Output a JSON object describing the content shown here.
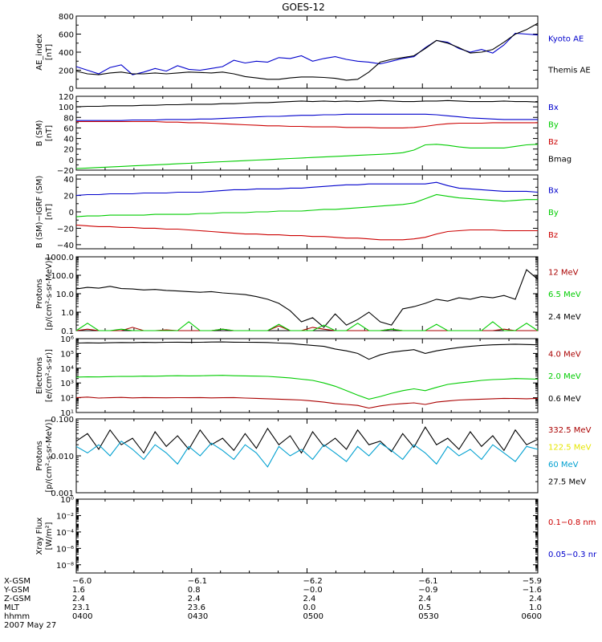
{
  "title": "GOES-12",
  "colors": {
    "black": "#000000",
    "blue": "#0000cc",
    "green": "#00cc00",
    "red": "#cc0000",
    "darkred": "#aa0000",
    "yellow": "#e6e600",
    "cyan": "#00a0d0"
  },
  "chart_data": [
    {
      "id": "ae",
      "type": "line",
      "ylabel": [
        "AE_index",
        "[nT]"
      ],
      "ylim": [
        0,
        800
      ],
      "yscale": "linear",
      "yticks": [
        0,
        200,
        400,
        600,
        800
      ],
      "tick_labels": [
        "0",
        "200",
        "400",
        "600",
        "800"
      ],
      "legend": [
        {
          "label": "Kyoto AE",
          "color": "#0000cc"
        },
        {
          "label": "Themis AE",
          "color": "#000000"
        }
      ],
      "series": [
        {
          "name": "Kyoto AE",
          "color": "#0000cc",
          "values": [
            240,
            200,
            160,
            230,
            260,
            150,
            180,
            220,
            190,
            250,
            210,
            200,
            220,
            240,
            310,
            280,
            300,
            290,
            340,
            330,
            360,
            300,
            330,
            350,
            320,
            300,
            290,
            270,
            300,
            330,
            350,
            450,
            530,
            510,
            440,
            400,
            430,
            390,
            480,
            610,
            600,
            590
          ]
        },
        {
          "name": "Themis AE",
          "color": "#000000",
          "values": [
            190,
            160,
            150,
            170,
            180,
            160,
            160,
            170,
            160,
            170,
            180,
            175,
            170,
            180,
            160,
            130,
            115,
            100,
            100,
            115,
            125,
            125,
            120,
            110,
            90,
            100,
            180,
            290,
            320,
            340,
            360,
            440,
            530,
            500,
            450,
            390,
            400,
            430,
            510,
            600,
            650,
            720
          ]
        }
      ]
    },
    {
      "id": "bsm",
      "type": "line",
      "ylabel": [
        "B (SM)",
        "[nT]"
      ],
      "ylim": [
        -20,
        120
      ],
      "yscale": "linear",
      "yticks": [
        -20,
        0,
        20,
        40,
        60,
        80,
        100,
        120
      ],
      "tick_labels": [
        "−20",
        "0",
        "20",
        "40",
        "60",
        "80",
        "100",
        "120"
      ],
      "legend": [
        {
          "label": "Bx",
          "color": "#0000cc"
        },
        {
          "label": "By",
          "color": "#00cc00"
        },
        {
          "label": "Bz",
          "color": "#cc0000"
        },
        {
          "label": "Bmag",
          "color": "#000000"
        }
      ],
      "series": [
        {
          "name": "Bmag",
          "color": "#000000",
          "values": [
            100,
            101,
            101,
            102,
            102,
            102,
            103,
            103,
            104,
            104,
            105,
            105,
            105,
            106,
            106,
            107,
            108,
            108,
            109,
            110,
            111,
            110,
            111,
            110,
            111,
            110,
            111,
            112,
            111,
            110,
            110,
            111,
            111,
            112,
            111,
            110,
            110,
            110,
            111,
            110,
            110,
            109
          ]
        },
        {
          "name": "Bx",
          "color": "#0000cc",
          "values": [
            74,
            74,
            74,
            74,
            74,
            75,
            75,
            75,
            76,
            76,
            76,
            77,
            77,
            78,
            79,
            80,
            81,
            82,
            82,
            83,
            84,
            84,
            85,
            85,
            86,
            86,
            86,
            86,
            86,
            86,
            86,
            86,
            85,
            83,
            81,
            79,
            78,
            77,
            76,
            76,
            76,
            76
          ]
        },
        {
          "name": "Bz",
          "color": "#cc0000",
          "values": [
            72,
            72,
            72,
            72,
            72,
            72,
            72,
            72,
            71,
            71,
            70,
            70,
            69,
            68,
            67,
            66,
            65,
            64,
            64,
            63,
            63,
            62,
            62,
            62,
            61,
            61,
            61,
            60,
            60,
            60,
            61,
            63,
            66,
            68,
            69,
            69,
            69,
            70,
            70,
            70,
            70,
            70
          ]
        },
        {
          "name": "By",
          "color": "#00cc00",
          "values": [
            -17,
            -16,
            -15,
            -14,
            -13,
            -12,
            -11,
            -10,
            -9,
            -8,
            -7,
            -6,
            -5,
            -4,
            -3,
            -2,
            -1,
            0,
            1,
            2,
            3,
            4,
            5,
            6,
            7,
            8,
            9,
            10,
            11,
            13,
            18,
            28,
            29,
            27,
            24,
            22,
            22,
            22,
            22,
            25,
            28,
            29
          ]
        }
      ]
    },
    {
      "id": "bsm_igrf",
      "type": "line",
      "ylabel": [
        "B (SM)−IGRF (SM)",
        "[nT]"
      ],
      "ylim": [
        -45,
        45
      ],
      "yscale": "linear",
      "yticks": [
        -40,
        -20,
        0,
        20,
        40
      ],
      "tick_labels": [
        "−40",
        "−20",
        "0",
        "20",
        "40"
      ],
      "legend": [
        {
          "label": "Bx",
          "color": "#0000cc"
        },
        {
          "label": "By",
          "color": "#00cc00"
        },
        {
          "label": "Bz",
          "color": "#cc0000"
        }
      ],
      "series": [
        {
          "name": "Bx",
          "color": "#0000cc",
          "values": [
            20,
            21,
            21,
            22,
            22,
            22,
            23,
            23,
            23,
            24,
            24,
            24,
            25,
            26,
            27,
            27,
            28,
            28,
            28,
            29,
            29,
            30,
            31,
            32,
            33,
            33,
            34,
            34,
            34,
            34,
            34,
            34,
            36,
            32,
            29,
            28,
            27,
            26,
            25,
            25,
            25,
            24
          ]
        },
        {
          "name": "By",
          "color": "#00cc00",
          "values": [
            -6,
            -5,
            -5,
            -4,
            -4,
            -4,
            -4,
            -3,
            -3,
            -3,
            -3,
            -2,
            -2,
            -1,
            -1,
            -1,
            0,
            0,
            1,
            1,
            1,
            2,
            3,
            3,
            4,
            5,
            6,
            7,
            8,
            9,
            11,
            16,
            21,
            19,
            17,
            16,
            15,
            14,
            13,
            14,
            15,
            15
          ]
        },
        {
          "name": "Bz",
          "color": "#cc0000",
          "values": [
            -16,
            -17,
            -18,
            -18,
            -19,
            -19,
            -20,
            -20,
            -21,
            -21,
            -22,
            -23,
            -24,
            -25,
            -26,
            -27,
            -27,
            -28,
            -28,
            -29,
            -29,
            -30,
            -30,
            -31,
            -32,
            -32,
            -33,
            -34,
            -34,
            -34,
            -33,
            -31,
            -27,
            -24,
            -23,
            -22,
            -22,
            -22,
            -23,
            -23,
            -23,
            -23
          ]
        }
      ]
    },
    {
      "id": "protons_low",
      "type": "line",
      "ylabel": [
        "Protons",
        "[p/(cm²-s-sr-MeV)]"
      ],
      "ylim": [
        0.1,
        1000
      ],
      "yscale": "log",
      "yticks": [
        0.1,
        1,
        10,
        100,
        1000
      ],
      "tick_labels": [
        "0.1",
        "1.0",
        "10.0",
        "100.0",
        "1000.0"
      ],
      "legend": [
        {
          "label": "12 MeV",
          "color": "#aa0000"
        },
        {
          "label": "6.5 MeV",
          "color": "#00cc00"
        },
        {
          "label": "2.4 MeV",
          "color": "#000000"
        }
      ],
      "series": [
        {
          "name": "2.4 MeV",
          "color": "#000000",
          "values": [
            18,
            22,
            20,
            25,
            19,
            18,
            16,
            17,
            15,
            14,
            13,
            12,
            13,
            11,
            10,
            9,
            7,
            5,
            3,
            1.2,
            0.3,
            0.5,
            0.15,
            0.8,
            0.2,
            0.4,
            1.0,
            0.3,
            0.2,
            1.5,
            2,
            3,
            5,
            4,
            6,
            5,
            7,
            6,
            8,
            5,
            200,
            60
          ]
        },
        {
          "name": "12 MeV",
          "color": "#aa0000",
          "values": [
            0.1,
            0.12,
            0.1,
            0.1,
            0.1,
            0.15,
            0.1,
            0.1,
            0.11,
            0.1,
            0.1,
            0.1,
            0.1,
            0.12,
            0.1,
            0.1,
            0.1,
            0.1,
            0.18,
            0.1,
            0.1,
            0.15,
            0.12,
            0.1,
            0.1,
            0.1,
            0.1,
            0.1,
            0.12,
            0.1,
            0.1,
            0.1,
            0.1,
            0.1,
            0.1,
            0.1,
            0.1,
            0.1,
            0.12,
            0.1,
            0.1,
            0.1
          ]
        },
        {
          "name": "6.5 MeV",
          "color": "#00cc00",
          "values": [
            0.1,
            0.25,
            0.1,
            0.1,
            0.12,
            0.1,
            0.1,
            0.1,
            0.1,
            0.1,
            0.3,
            0.1,
            0.1,
            0.12,
            0.1,
            0.1,
            0.1,
            0.1,
            0.22,
            0.1,
            0.1,
            0.1,
            0.2,
            0.1,
            0.1,
            0.25,
            0.1,
            0.1,
            0.12,
            0.1,
            0.1,
            0.1,
            0.22,
            0.1,
            0.1,
            0.1,
            0.1,
            0.3,
            0.1,
            0.1,
            0.25,
            0.1
          ]
        }
      ]
    },
    {
      "id": "electrons",
      "type": "line",
      "ylabel": [
        "Electrons",
        "[e/(cm²-s-sr)]"
      ],
      "ylim": [
        10,
        1000000
      ],
      "yscale": "log",
      "yticks": [
        10,
        100,
        1000,
        10000,
        100000,
        1000000
      ],
      "tick_labels": [
        "10¹",
        "10²",
        "10³",
        "10⁴",
        "10⁵",
        "10⁶"
      ],
      "legend": [
        {
          "label": "4.0 MeV",
          "color": "#aa0000"
        },
        {
          "label": "2.0 MeV",
          "color": "#00cc00"
        },
        {
          "label": "0.6 MeV",
          "color": "#000000"
        }
      ],
      "series": [
        {
          "name": "0.6 MeV",
          "color": "#000000",
          "values": [
            500000,
            520000,
            510000,
            530000,
            550000,
            540000,
            560000,
            550000,
            570000,
            580000,
            560000,
            570000,
            590000,
            600000,
            580000,
            570000,
            560000,
            550000,
            500000,
            480000,
            400000,
            350000,
            300000,
            200000,
            150000,
            100000,
            40000,
            80000,
            120000,
            150000,
            180000,
            100000,
            150000,
            200000,
            250000,
            300000,
            350000,
            380000,
            400000,
            420000,
            400000,
            380000
          ]
        },
        {
          "name": "2.0 MeV",
          "color": "#00cc00",
          "values": [
            2500,
            2600,
            2550,
            2700,
            2800,
            2750,
            2900,
            2850,
            3000,
            3100,
            3000,
            3050,
            3200,
            3300,
            3100,
            3000,
            2900,
            2800,
            2500,
            2200,
            1800,
            1500,
            1000,
            600,
            300,
            150,
            80,
            120,
            200,
            300,
            400,
            300,
            500,
            800,
            1000,
            1200,
            1500,
            1700,
            1800,
            2000,
            1900,
            1800
          ]
        },
        {
          "name": "4.0 MeV",
          "color": "#aa0000",
          "values": [
            100,
            110,
            95,
            100,
            105,
            98,
            102,
            100,
            99,
            101,
            100,
            103,
            97,
            100,
            102,
            95,
            90,
            85,
            80,
            75,
            70,
            60,
            50,
            40,
            35,
            30,
            20,
            28,
            35,
            40,
            45,
            35,
            50,
            60,
            70,
            75,
            80,
            85,
            90,
            88,
            85,
            90
          ]
        }
      ]
    },
    {
      "id": "protons_high",
      "type": "line",
      "ylabel": [
        "Protons",
        "[p/(cm²-s-sr-MeV)]"
      ],
      "ylim": [
        0.001,
        0.1
      ],
      "yscale": "log",
      "yticks": [
        0.001,
        0.01,
        0.1
      ],
      "tick_labels": [
        "0.001",
        "0.010",
        "0.100"
      ],
      "legend": [
        {
          "label": "332.5 MeV",
          "color": "#aa0000"
        },
        {
          "label": "122.5 MeV",
          "color": "#e6e600"
        },
        {
          "label": "60 MeV",
          "color": "#00a0d0"
        },
        {
          "label": "27.5 MeV",
          "color": "#000000"
        }
      ],
      "series": [
        {
          "name": "27.5 MeV",
          "color": "#000000",
          "values": [
            0.025,
            0.04,
            0.015,
            0.05,
            0.02,
            0.03,
            0.012,
            0.045,
            0.018,
            0.035,
            0.015,
            0.05,
            0.02,
            0.03,
            0.014,
            0.04,
            0.016,
            0.055,
            0.02,
            0.035,
            0.012,
            0.045,
            0.018,
            0.03,
            0.015,
            0.05,
            0.02,
            0.025,
            0.013,
            0.04,
            0.017,
            0.06,
            0.02,
            0.03,
            0.015,
            0.045,
            0.018,
            0.035,
            0.014,
            0.05,
            0.02,
            0.028
          ]
        },
        {
          "name": "60 MeV",
          "color": "#00a0d0",
          "values": [
            0.018,
            0.012,
            0.02,
            0.01,
            0.025,
            0.015,
            0.008,
            0.02,
            0.012,
            0.006,
            0.018,
            0.01,
            0.022,
            0.014,
            0.008,
            0.02,
            0.012,
            0.005,
            0.018,
            0.01,
            0.015,
            0.008,
            0.02,
            0.012,
            0.007,
            0.018,
            0.01,
            0.022,
            0.014,
            0.008,
            0.02,
            0.012,
            0.006,
            0.018,
            0.01,
            0.015,
            0.008,
            0.02,
            0.012,
            0.007,
            0.018,
            0.015
          ]
        }
      ]
    },
    {
      "id": "xray",
      "type": "line",
      "ylabel": [
        "Xray Flux",
        "[W/m²]"
      ],
      "ylim": [
        1e-09,
        1
      ],
      "yscale": "log",
      "yticks": [
        1e-08,
        1e-06,
        0.0001,
        0.01,
        1
      ],
      "tick_labels": [
        "10⁻⁸",
        "10⁻⁶",
        "10⁻⁴",
        "10⁻²",
        "10⁰"
      ],
      "legend": [
        {
          "label": "0.1−0.8 nm",
          "color": "#cc0000"
        },
        {
          "label": "0.05−0.3 nr",
          "color": "#0000cc"
        }
      ],
      "series": []
    }
  ],
  "x_axis": {
    "row_labels": [
      "X-GSM",
      "Y-GSM",
      "Z-GSM",
      "MLT",
      "hhmm",
      "2007 May 27"
    ],
    "columns": [
      {
        "values": [
          "−6.0",
          "1.6",
          "2.4",
          "23.1",
          "0400"
        ]
      },
      {
        "values": [
          "−6.1",
          "0.8",
          "2.4",
          "23.6",
          "0430"
        ]
      },
      {
        "values": [
          "−6.2",
          "−0.0",
          "2.4",
          "0.0",
          "0500"
        ]
      },
      {
        "values": [
          "−6.1",
          "−0.9",
          "2.4",
          "0.5",
          "0530"
        ]
      },
      {
        "values": [
          "−5.9",
          "−1.6",
          "2.4",
          "1.0",
          "0600"
        ]
      }
    ]
  }
}
